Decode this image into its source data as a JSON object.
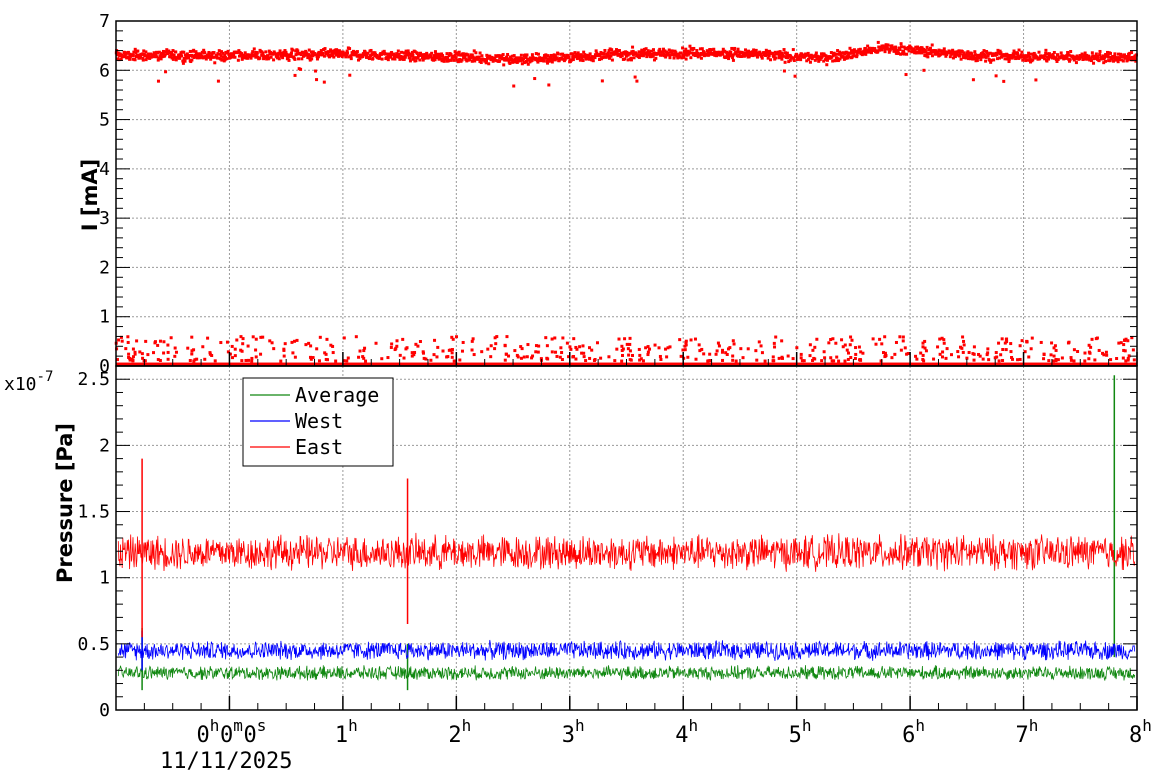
{
  "chart_data": [
    {
      "type": "scatter",
      "ylabel": "I [mA]",
      "ylim": [
        0,
        7
      ],
      "y_ticks": [
        "0",
        "1",
        "2",
        "3",
        "4",
        "5",
        "6",
        "7"
      ],
      "grid": true,
      "x_range_hours": [
        -1,
        8
      ],
      "series": [
        {
          "color": "#ff0000",
          "points_per_hour": 220,
          "baseline_mA": 6.3,
          "spread_mA": 0.1,
          "wave": [
            0,
            6.3,
            1,
            6.32,
            1.8,
            6.28,
            2.6,
            6.22,
            3.5,
            6.33,
            4.4,
            6.35,
            5.2,
            6.25,
            5.8,
            6.45,
            6.6,
            6.3,
            7.5,
            6.27,
            8,
            6.25
          ]
        },
        {
          "color": "#ff0000",
          "points_per_hour": 60,
          "baseline_mA": 0.02,
          "outliers": "0.1–0.6 mA sporadic"
        }
      ]
    },
    {
      "type": "line",
      "ylabel": "Pressure [Pa]",
      "exponent_label": "x10",
      "exponent_power": "-7",
      "ylim": [
        0,
        2.6
      ],
      "y_ticks": [
        "0",
        "0.5",
        "1",
        "1.5",
        "2",
        "2.5"
      ],
      "x_tick_labels": [
        {
          "t": 0,
          "base": "0",
          "sup": "h",
          "extra": [
            [
              "0",
              "m"
            ],
            [
              "0",
              "s"
            ]
          ]
        },
        {
          "t": 1,
          "base": "1",
          "sup": "h"
        },
        {
          "t": 2,
          "base": "2",
          "sup": "h"
        },
        {
          "t": 3,
          "base": "3",
          "sup": "h"
        },
        {
          "t": 4,
          "base": "4",
          "sup": "h"
        },
        {
          "t": 5,
          "base": "5",
          "sup": "h"
        },
        {
          "t": 6,
          "base": "6",
          "sup": "h"
        },
        {
          "t": 7,
          "base": "7",
          "sup": "h"
        },
        {
          "t": 8,
          "base": "8",
          "sup": "h"
        }
      ],
      "date_label": "11/11/2025",
      "x_range_hours": [
        -1,
        8
      ],
      "grid": true,
      "legend_position": "top-left",
      "series": [
        {
          "name": "Average",
          "color": "#118811",
          "mean": 0.28,
          "amplitude": 0.06,
          "spikes": [
            {
              "t": -0.77,
              "min": 0.15,
              "max": 0.62
            },
            {
              "t": 1.57,
              "min": 0.15,
              "max": 0.5
            },
            {
              "t": 7.8,
              "min": 0.4,
              "max": 2.53
            }
          ]
        },
        {
          "name": "West",
          "color": "#0000ff",
          "mean": 0.45,
          "amplitude": 0.08,
          "spikes": [
            {
              "t": -0.77,
              "min": 0.3,
              "max": 0.6
            }
          ]
        },
        {
          "name": "East",
          "color": "#ff0000",
          "mean": 1.19,
          "amplitude": 0.15,
          "spikes": [
            {
              "t": -0.77,
              "min": 0.55,
              "max": 1.9
            },
            {
              "t": 1.57,
              "min": 0.65,
              "max": 1.75
            }
          ]
        }
      ]
    }
  ]
}
